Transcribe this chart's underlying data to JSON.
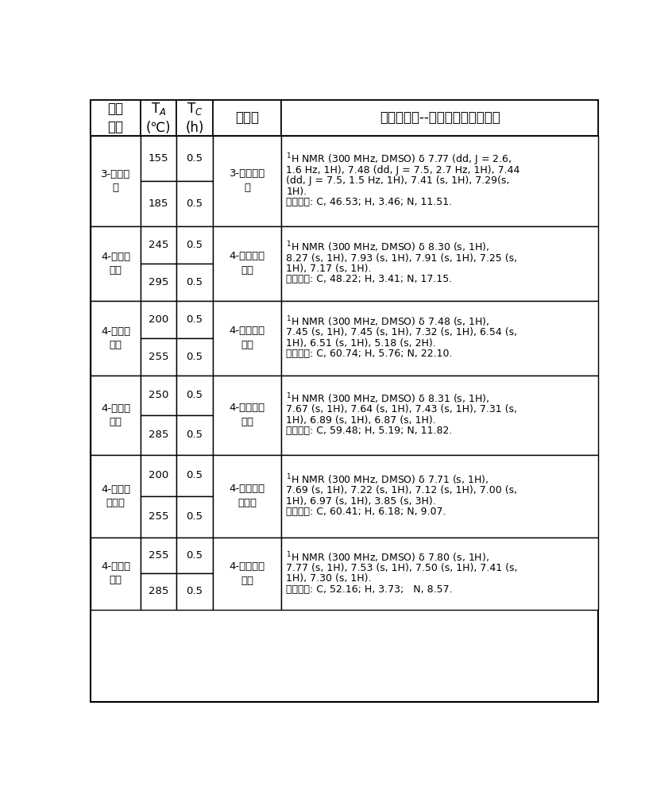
{
  "col_headers": [
    "羧酸\n原料",
    "T$_A$\n(℃)",
    "T$_C$\n(h)",
    "中间体",
    "中间体表征--核磁氢谱和元素分析"
  ],
  "rows": [
    {
      "reactant": "3-噻吩甲\n酸",
      "temps": [
        "155",
        "185"
      ],
      "tc": [
        "0.5",
        "0.5"
      ],
      "intermediate": "3-噻吩甲酰\n胺",
      "nmr_lines": [
        "$^{1}$H NMR (300 MHz, DMSO) δ 7.77 (dd, J = 2.6,",
        "1.6 Hz, 1H), 7.48 (dd, J = 7.5, 2.7 Hz, 1H), 7.44",
        "(dd, J = 7.5, 1.5 Hz, 1H), 7.41 (s, 1H), 7.29(s,",
        "1H).",
        "元素分析: C, 46.53; H, 3.46; N, 11.51."
      ]
    },
    {
      "reactant": "4-硝基苯\n甲酸",
      "temps": [
        "245",
        "295"
      ],
      "tc": [
        "0.5",
        "0.5"
      ],
      "intermediate": "4-硝基苯甲\n酰胺",
      "nmr_lines": [
        "$^{1}$H NMR (300 MHz, DMSO) δ 8.30 (s, 1H),",
        "8.27 (s, 1H), 7.93 (s, 1H), 7.91 (s, 1H), 7.25 (s,",
        "1H), 7.17 (s, 1H).",
        "元素分析: C, 48.22; H, 3.41; N, 17.15."
      ]
    },
    {
      "reactant": "4-氨基苯\n甲酸",
      "temps": [
        "200",
        "255"
      ],
      "tc": [
        "0.5",
        "0.5"
      ],
      "intermediate": "4-氨基苯甲\n酰胺",
      "nmr_lines": [
        "$^{1}$H NMR (300 MHz, DMSO) δ 7.48 (s, 1H),",
        "7.45 (s, 1H), 7.45 (s, 1H), 7.32 (s, 1H), 6.54 (s,",
        "1H), 6.51 (s, 1H), 5.18 (s, 2H).",
        "元素分析: C, 60.74; H, 5.76; N, 22.10."
      ]
    },
    {
      "reactant": "4-羟基苯\n甲酸",
      "temps": [
        "250",
        "285"
      ],
      "tc": [
        "0.5",
        "0.5"
      ],
      "intermediate": "4-羟基苯甲\n酰胺",
      "nmr_lines": [
        "$^{1}$H NMR (300 MHz, DMSO) δ 8.31 (s, 1H),",
        "7.67 (s, 1H), 7.64 (s, 1H), 7.43 (s, 1H), 7.31 (s,",
        "1H), 6.89 (s, 1H), 6.87 (s, 1H).",
        "元素分析: C, 59.48; H, 5.19; N, 11.82."
      ]
    },
    {
      "reactant": "4-甲氧基\n苯甲酸",
      "temps": [
        "200",
        "255"
      ],
      "tc": [
        "0.5",
        "0.5"
      ],
      "intermediate": "4-甲氧基苯\n甲酰胺",
      "nmr_lines": [
        "$^{1}$H NMR (300 MHz, DMSO) δ 7.71 (s, 1H),",
        "7.69 (s, 1H), 7.22 (s, 1H), 7.12 (s, 1H), 7.00 (s,",
        "1H), 6.97 (s, 1H), 3.85 (s, 3H).",
        "元素分析: C, 60.41; H, 6.18; N, 9.07."
      ]
    },
    {
      "reactant": "4-氯代苯\n甲酸",
      "temps": [
        "255",
        "285"
      ],
      "tc": [
        "0.5",
        "0.5"
      ],
      "intermediate": "4-氯代苯甲\n酰胺",
      "nmr_lines": [
        "$^{1}$H NMR (300 MHz, DMSO) δ 7.80 (s, 1H),",
        "7.77 (s, 1H), 7.53 (s, 1H), 7.50 (s, 1H), 7.41 (s,",
        "1H), 7.30 (s, 1H).",
        "元素分析: C, 52.16; H, 3.73;   N, 8.57."
      ]
    }
  ],
  "bg_color": "#ffffff",
  "border_color": "#000000",
  "text_color": "#000000"
}
